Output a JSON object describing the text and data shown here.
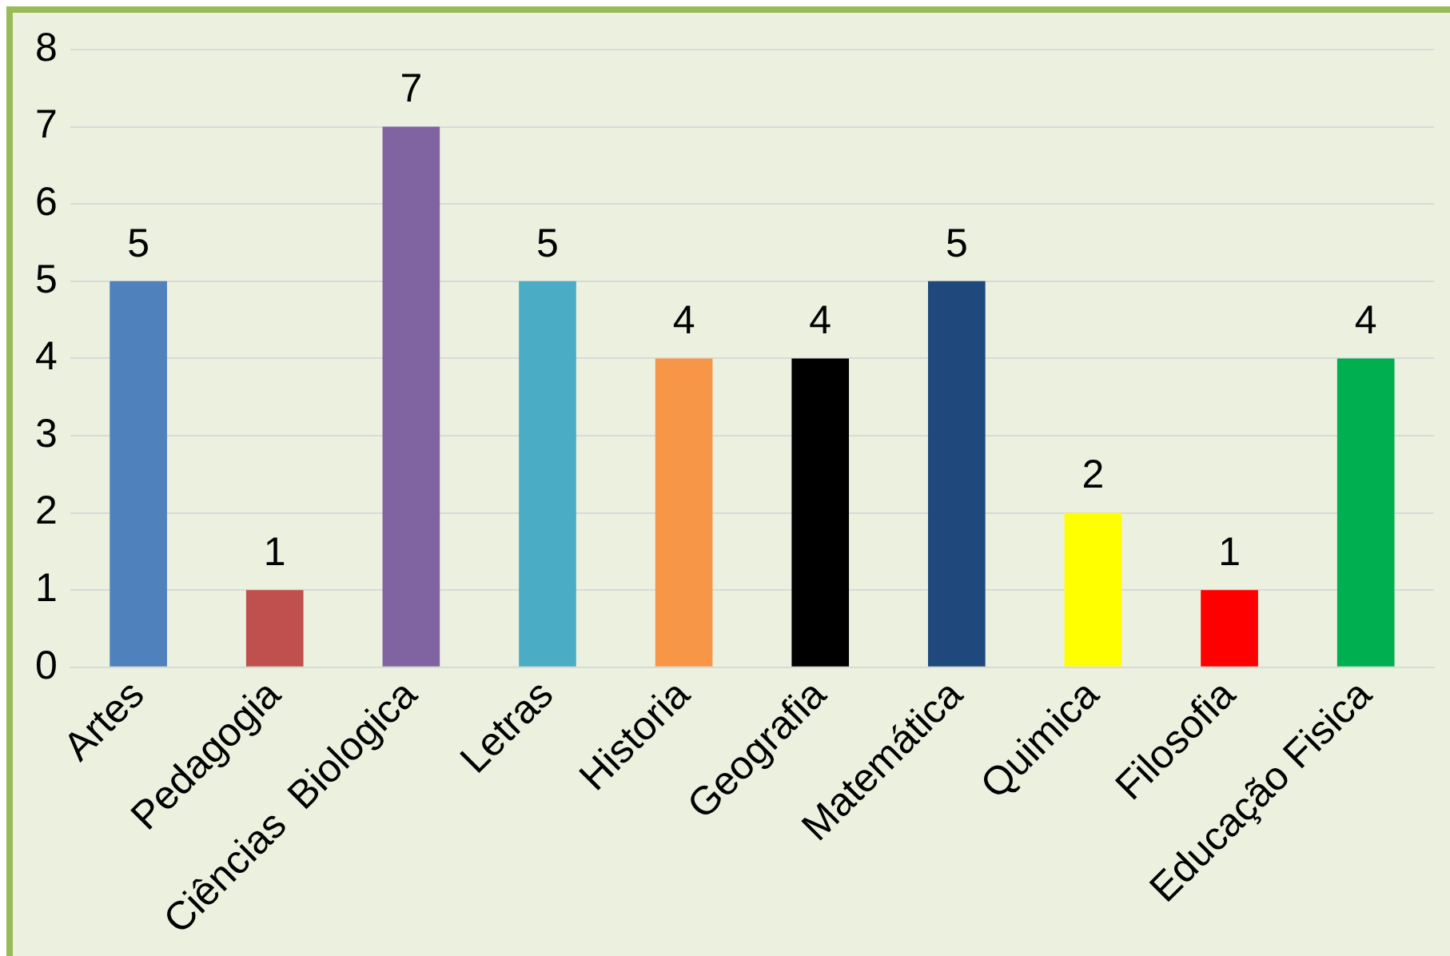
{
  "chart_data": {
    "type": "bar",
    "categories": [
      "Artes",
      "Pedagogia",
      "Ciências  Biologica",
      "Letras",
      "Historia",
      "Geografia",
      "Matemática",
      "Quimica",
      "Filosofia",
      "Educação Fisica"
    ],
    "values": [
      5,
      1,
      7,
      5,
      4,
      4,
      5,
      2,
      1,
      4
    ],
    "colors": [
      "#4f81bd",
      "#c0504d",
      "#8064a2",
      "#4bacc6",
      "#f79646",
      "#000000",
      "#1f497d",
      "#ffff00",
      "#ff0000",
      "#00b050"
    ],
    "ylim": [
      0,
      8
    ],
    "yticks": [
      0,
      1,
      2,
      3,
      4,
      5,
      6,
      7,
      8
    ],
    "grid": "y",
    "legend": false,
    "data_labels": true
  }
}
